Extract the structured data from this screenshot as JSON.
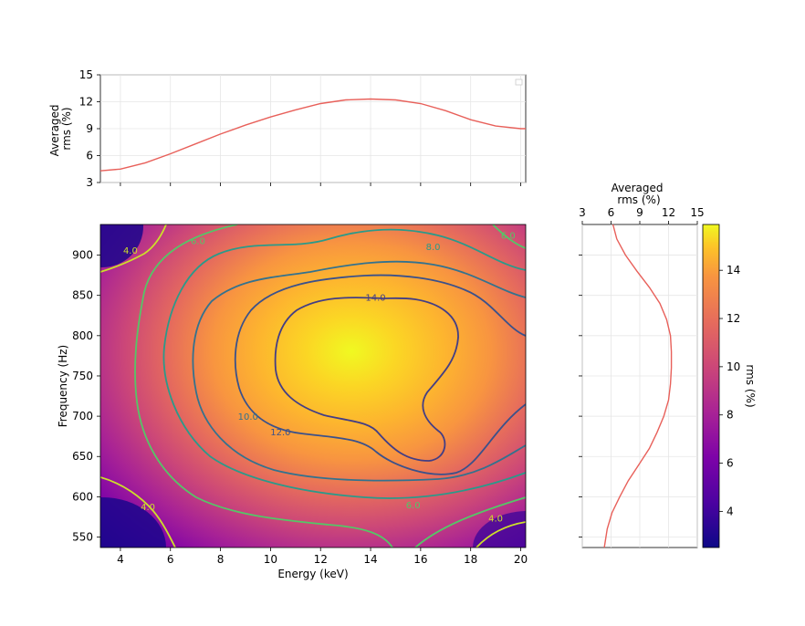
{
  "chart_data": [
    {
      "type": "line",
      "panel": "top",
      "ylabel": "Averaged\nrms (%)",
      "xlim": [
        3.2,
        20.2
      ],
      "ylim": [
        3,
        15
      ],
      "yticks": [
        "3",
        "6",
        "9",
        "12",
        "15"
      ],
      "grid": true,
      "legend": "top-right",
      "series": [
        {
          "color": "#e8605a",
          "x": [
            3.2,
            4,
            5,
            6,
            7,
            8,
            9,
            10,
            11,
            12,
            13,
            14,
            15,
            16,
            17,
            18,
            19,
            20,
            20.2
          ],
          "values": [
            4.3,
            4.5,
            5.2,
            6.2,
            7.3,
            8.4,
            9.4,
            10.3,
            11.1,
            11.8,
            12.2,
            12.3,
            12.2,
            11.8,
            11.0,
            10.0,
            9.3,
            9.0,
            9.0
          ]
        }
      ]
    },
    {
      "type": "heatmap",
      "panel": "main",
      "xlabel": "Energy (keV)",
      "ylabel": "Frequency (Hz)",
      "xlim": [
        3.2,
        20.2
      ],
      "ylim": [
        537,
        938
      ],
      "xticks": [
        "4",
        "6",
        "8",
        "10",
        "12",
        "14",
        "16",
        "18",
        "20"
      ],
      "yticks": [
        "550",
        "600",
        "650",
        "700",
        "750",
        "800",
        "850",
        "900"
      ],
      "colormap": "plasma",
      "peak": {
        "energy_keV": 13.3,
        "frequency_Hz": 770,
        "rms_pct": 15.7
      },
      "contour_levels": [
        4.0,
        6.0,
        8.0,
        10.0,
        12.0,
        14.0
      ],
      "contour_labels": [
        {
          "text": "4.0",
          "energy": 4.4,
          "freq": 906
        },
        {
          "text": "6.0",
          "energy": 7.1,
          "freq": 918
        },
        {
          "text": "8.0",
          "energy": 16.5,
          "freq": 911
        },
        {
          "text": "6.0",
          "energy": 19.5,
          "freq": 925
        },
        {
          "text": "14.0",
          "energy": 14.2,
          "freq": 848
        },
        {
          "text": "10.0",
          "energy": 9.1,
          "freq": 700
        },
        {
          "text": "12.0",
          "energy": 10.4,
          "freq": 681
        },
        {
          "text": "4.0",
          "energy": 5.1,
          "freq": 588
        },
        {
          "text": "6.0",
          "energy": 15.7,
          "freq": 590
        },
        {
          "text": "4.0",
          "energy": 19.0,
          "freq": 574
        }
      ]
    },
    {
      "type": "line",
      "panel": "right",
      "xlabel": "Averaged\nrms (%)",
      "xlim": [
        3,
        15
      ],
      "xticks": [
        "3",
        "6",
        "9",
        "12",
        "15"
      ],
      "ylim": [
        537,
        938
      ],
      "grid": true,
      "series": [
        {
          "color": "#e8605a",
          "y": [
            938,
            920,
            900,
            880,
            860,
            840,
            820,
            800,
            780,
            760,
            740,
            720,
            700,
            680,
            660,
            640,
            620,
            600,
            580,
            560,
            537
          ],
          "values": [
            6.2,
            6.6,
            7.5,
            8.7,
            10.0,
            11.1,
            11.8,
            12.2,
            12.3,
            12.3,
            12.2,
            12.0,
            11.5,
            10.8,
            10.0,
            8.9,
            7.8,
            6.9,
            6.1,
            5.6,
            5.3
          ]
        }
      ]
    },
    {
      "type": "colorbar",
      "label": "rms (%)",
      "range": [
        2.5,
        15.9
      ],
      "ticks": [
        "4",
        "6",
        "8",
        "10",
        "12",
        "14"
      ],
      "colormap": "plasma"
    }
  ]
}
